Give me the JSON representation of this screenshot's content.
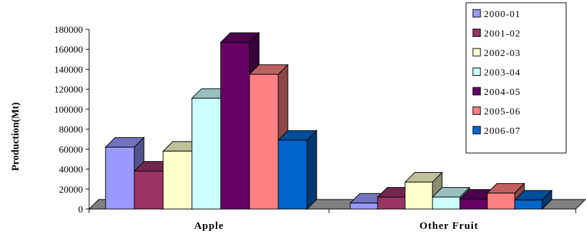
{
  "chart_data": {
    "type": "bar",
    "title": "",
    "xlabel": "",
    "ylabel": "Production(Mt)",
    "categories": [
      "Apple",
      "Other Fruit"
    ],
    "ylim": [
      0,
      180000
    ],
    "yticks": [
      "0",
      "20000",
      "40000",
      "60000",
      "80000",
      "100000",
      "120000",
      "140000",
      "160000",
      "180000"
    ],
    "legend_position": "top-right",
    "grid": false,
    "three_d": true,
    "series": [
      {
        "name": "2000-01",
        "color": "#9999ff",
        "values": [
          62000,
          6000
        ]
      },
      {
        "name": "2001-02",
        "color": "#993366",
        "values": [
          38000,
          12000
        ]
      },
      {
        "name": "2002-03",
        "color": "#ffffcc",
        "values": [
          58000,
          27000
        ]
      },
      {
        "name": "2003-04",
        "color": "#ccffff",
        "values": [
          111000,
          12000
        ]
      },
      {
        "name": "2004-05",
        "color": "#660066",
        "values": [
          167000,
          10000
        ]
      },
      {
        "name": "2005-06",
        "color": "#ff8080",
        "values": [
          135000,
          16000
        ]
      },
      {
        "name": "2006-07",
        "color": "#0066cc",
        "values": [
          69000,
          9000
        ]
      }
    ]
  }
}
